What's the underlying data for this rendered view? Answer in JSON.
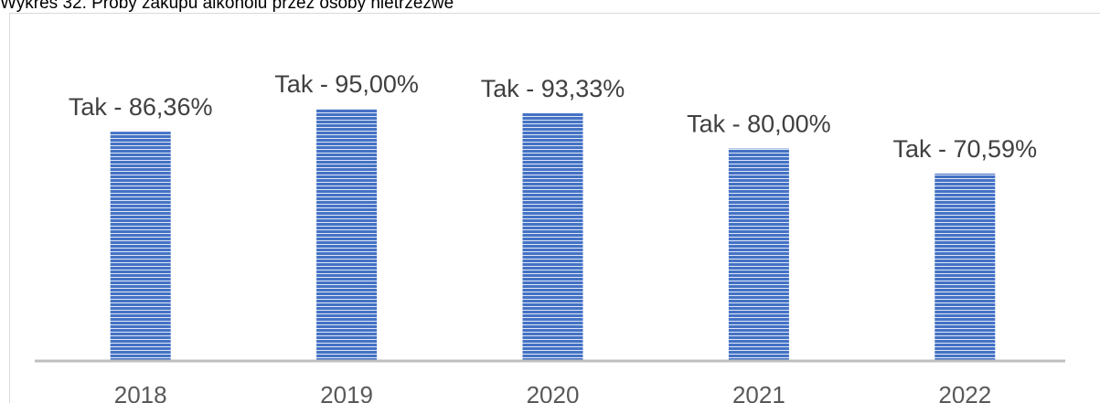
{
  "chart_data": {
    "type": "bar",
    "title": "Wykres 32. Próby zakupu alkoholu przez osoby nietrzeźwe",
    "categories": [
      "2018",
      "2019",
      "2020",
      "2021",
      "2022"
    ],
    "values": [
      86.36,
      95.0,
      93.33,
      80.0,
      70.59
    ],
    "value_labels": [
      "Tak - 86,36%",
      "Tak - 95,00%",
      "Tak - 93,33%",
      "Tak - 80,00%",
      "Tak - 70,59%"
    ],
    "color": "#4472c4",
    "ylim": [
      0,
      100
    ]
  }
}
